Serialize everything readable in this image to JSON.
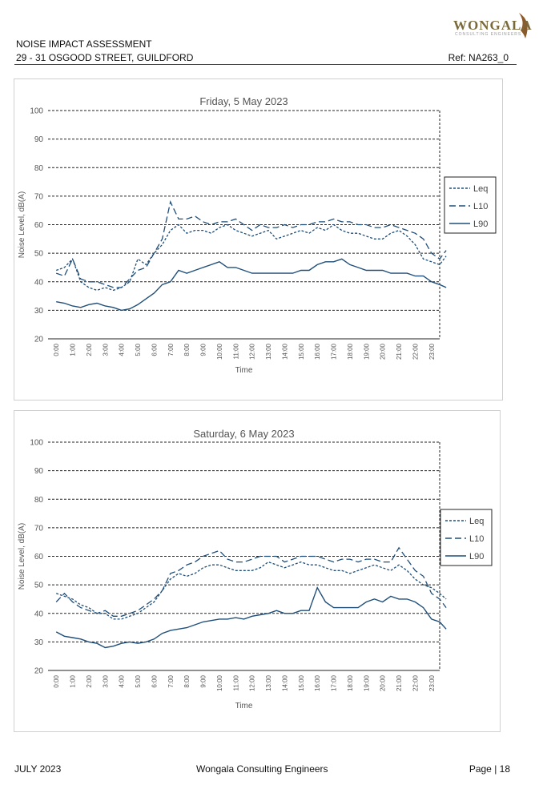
{
  "header": {
    "line1": "NOISE IMPACT ASSESSMENT",
    "line2": "29 - 31 OSGOOD STREET, GUILDFORD",
    "ref": "Ref: NA263_0",
    "logo_name": "WONGALA",
    "logo_sub": "CONSULTING ENGINEERS"
  },
  "footer": {
    "left": "JULY 2023",
    "center": "Wongala Consulting Engineers",
    "right": "Page | 18"
  },
  "colors": {
    "series": "#1f4e79",
    "grid": "#222222"
  },
  "chart_data": [
    {
      "type": "line",
      "title": "Friday, 5 May 2023",
      "xlabel": "Time",
      "ylabel": "Noise Level, dB(A)",
      "ylim": [
        20,
        100
      ],
      "yticks": [
        20,
        30,
        40,
        50,
        60,
        70,
        80,
        90,
        100
      ],
      "xticks": [
        "0:00",
        "1:00",
        "2:00",
        "3:00",
        "4:00",
        "5:00",
        "6:00",
        "7:00",
        "8:00",
        "9:00",
        "10:00",
        "11:00",
        "12:00",
        "13:00",
        "14:00",
        "15:00",
        "16:00",
        "17:00",
        "18:00",
        "19:00",
        "20:00",
        "21:00",
        "22:00",
        "23:00"
      ],
      "x_range_hours": [
        0,
        24
      ],
      "grid": "dashed horizontal",
      "legend": "right",
      "series": [
        {
          "name": "Leq",
          "style": "dotted",
          "x": [
            0,
            0.5,
            1,
            1.5,
            2,
            2.5,
            3,
            3.5,
            4,
            4.5,
            5,
            5.5,
            6,
            6.5,
            7,
            7.5,
            8,
            8.5,
            9,
            9.5,
            10,
            10.5,
            11,
            11.5,
            12,
            12.5,
            13,
            13.5,
            14,
            14.5,
            15,
            15.5,
            16,
            16.5,
            17,
            17.5,
            18,
            18.5,
            19,
            19.5,
            20,
            20.5,
            21,
            21.5,
            22,
            22.5,
            23,
            23.5,
            23.9
          ],
          "y": [
            44,
            45,
            48,
            40,
            38,
            37,
            38,
            37,
            38,
            40,
            48,
            46,
            50,
            53,
            58,
            60,
            57,
            58,
            58,
            57,
            59,
            60,
            58,
            57,
            56,
            57,
            58,
            55,
            56,
            57,
            58,
            57,
            59,
            58,
            60,
            58,
            57,
            57,
            56,
            55,
            55,
            57,
            58,
            56,
            53,
            48,
            47,
            46,
            49
          ]
        },
        {
          "name": "L10",
          "style": "dashed",
          "x": [
            0,
            0.5,
            1,
            1.5,
            2,
            2.5,
            3,
            3.5,
            4,
            4.5,
            5,
            5.5,
            6,
            6.5,
            7,
            7.5,
            8,
            8.5,
            9,
            9.5,
            10,
            10.5,
            11,
            11.5,
            12,
            12.5,
            13,
            13.5,
            14,
            14.5,
            15,
            15.5,
            16,
            16.5,
            17,
            17.5,
            18,
            18.5,
            19,
            19.5,
            20,
            20.5,
            21,
            21.5,
            22,
            22.5,
            23,
            23.5,
            23.9
          ],
          "y": [
            43,
            42,
            48,
            41,
            40,
            40,
            39,
            38,
            38,
            41,
            44,
            45,
            50,
            55,
            68,
            62,
            62,
            63,
            61,
            60,
            61,
            61,
            62,
            60,
            58,
            60,
            59,
            59,
            60,
            59,
            60,
            60,
            61,
            61,
            62,
            61,
            61,
            60,
            60,
            59,
            59,
            60,
            59,
            58,
            57,
            55,
            50,
            48,
            51
          ]
        },
        {
          "name": "L90",
          "style": "solid",
          "x": [
            0,
            0.5,
            1,
            1.5,
            2,
            2.5,
            3,
            3.5,
            4,
            4.5,
            5,
            5.5,
            6,
            6.5,
            7,
            7.5,
            8,
            8.5,
            9,
            9.5,
            10,
            10.5,
            11,
            11.5,
            12,
            12.5,
            13,
            13.5,
            14,
            14.5,
            15,
            15.5,
            16,
            16.5,
            17,
            17.5,
            18,
            18.5,
            19,
            19.5,
            20,
            20.5,
            21,
            21.5,
            22,
            22.5,
            23,
            23.5,
            23.9
          ],
          "y": [
            33,
            32.5,
            31.5,
            31,
            32,
            32.5,
            31.5,
            31,
            30,
            30.5,
            32,
            34,
            36,
            39,
            40,
            44,
            43,
            44,
            45,
            46,
            47,
            45,
            45,
            44,
            43,
            43,
            43,
            43,
            43,
            43,
            44,
            44,
            46,
            47,
            47,
            48,
            46,
            45,
            44,
            44,
            44,
            43,
            43,
            43,
            42,
            42,
            40,
            39,
            38
          ]
        }
      ]
    },
    {
      "type": "line",
      "title": "Saturday, 6 May 2023",
      "xlabel": "Time",
      "ylabel": "Noise Level, dB(A)",
      "ylim": [
        20,
        100
      ],
      "yticks": [
        20,
        30,
        40,
        50,
        60,
        70,
        80,
        90,
        100
      ],
      "xticks": [
        "0:00",
        "1:00",
        "2:00",
        "3:00",
        "4:00",
        "5:00",
        "6:00",
        "7:00",
        "8:00",
        "9:00",
        "10:00",
        "11:00",
        "12:00",
        "13:00",
        "14:00",
        "15:00",
        "16:00",
        "17:00",
        "18:00",
        "19:00",
        "20:00",
        "21:00",
        "22:00",
        "23:00"
      ],
      "x_range_hours": [
        0,
        24
      ],
      "grid": "dashed horizontal",
      "legend": "right",
      "series": [
        {
          "name": "Leq",
          "style": "dotted",
          "x": [
            0,
            0.5,
            1,
            1.5,
            2,
            2.5,
            3,
            3.5,
            4,
            4.5,
            5,
            5.5,
            6,
            6.5,
            7,
            7.5,
            8,
            8.5,
            9,
            9.5,
            10,
            10.5,
            11,
            11.5,
            12,
            12.5,
            13,
            13.5,
            14,
            14.5,
            15,
            15.5,
            16,
            16.5,
            17,
            17.5,
            18,
            18.5,
            19,
            19.5,
            20,
            20.5,
            21,
            21.5,
            22,
            22.5,
            23,
            23.5,
            23.9
          ],
          "y": [
            47,
            46,
            45,
            43,
            42,
            40,
            40,
            38,
            38,
            39,
            40,
            42,
            44,
            48,
            52,
            54,
            53,
            54,
            56,
            57,
            57,
            56,
            55,
            55,
            55,
            56,
            58,
            57,
            56,
            57,
            58,
            57,
            57,
            56,
            55,
            55,
            54,
            55,
            56,
            57,
            56,
            55,
            57,
            55,
            52,
            50,
            49,
            47,
            45
          ]
        },
        {
          "name": "L10",
          "style": "dashed",
          "x": [
            0,
            0.5,
            1,
            1.5,
            2,
            2.5,
            3,
            3.5,
            4,
            4.5,
            5,
            5.5,
            6,
            6.5,
            7,
            7.5,
            8,
            8.5,
            9,
            9.5,
            10,
            10.5,
            11,
            11.5,
            12,
            12.5,
            13,
            13.5,
            14,
            14.5,
            15,
            15.5,
            16,
            16.5,
            17,
            17.5,
            18,
            18.5,
            19,
            19.5,
            20,
            20.5,
            21,
            21.5,
            22,
            22.5,
            23,
            23.5,
            23.9
          ],
          "y": [
            44,
            47,
            44,
            42,
            41,
            40,
            41,
            39,
            39,
            40,
            41,
            43,
            45,
            48,
            54,
            55,
            57,
            58,
            60,
            61,
            62,
            59,
            58,
            58,
            59,
            60,
            60,
            60,
            58,
            59,
            60,
            60,
            60,
            59,
            58,
            59,
            59,
            58,
            59,
            59,
            58,
            58,
            63,
            59,
            55,
            53,
            47,
            45,
            42
          ]
        },
        {
          "name": "L90",
          "style": "solid",
          "x": [
            0,
            0.5,
            1,
            1.5,
            2,
            2.5,
            3,
            3.5,
            4,
            4.5,
            5,
            5.5,
            6,
            6.5,
            7,
            7.5,
            8,
            8.5,
            9,
            9.5,
            10,
            10.5,
            11,
            11.5,
            12,
            12.5,
            13,
            13.5,
            14,
            14.5,
            15,
            15.5,
            16,
            16.5,
            17,
            17.5,
            18,
            18.5,
            19,
            19.5,
            20,
            20.5,
            21,
            21.5,
            22,
            22.5,
            23,
            23.5,
            23.9
          ],
          "y": [
            33.5,
            32,
            31.5,
            31,
            30,
            29.5,
            28,
            28.5,
            29.5,
            30,
            29.5,
            30,
            31,
            33,
            34,
            34.5,
            35,
            36,
            37,
            37.5,
            38,
            38,
            38.5,
            38,
            39,
            39.5,
            40,
            41,
            40,
            40,
            41,
            41,
            49,
            44,
            42,
            42,
            42,
            42,
            44,
            45,
            44,
            46,
            45,
            45,
            44,
            42,
            38,
            37,
            34.5
          ]
        }
      ]
    }
  ]
}
